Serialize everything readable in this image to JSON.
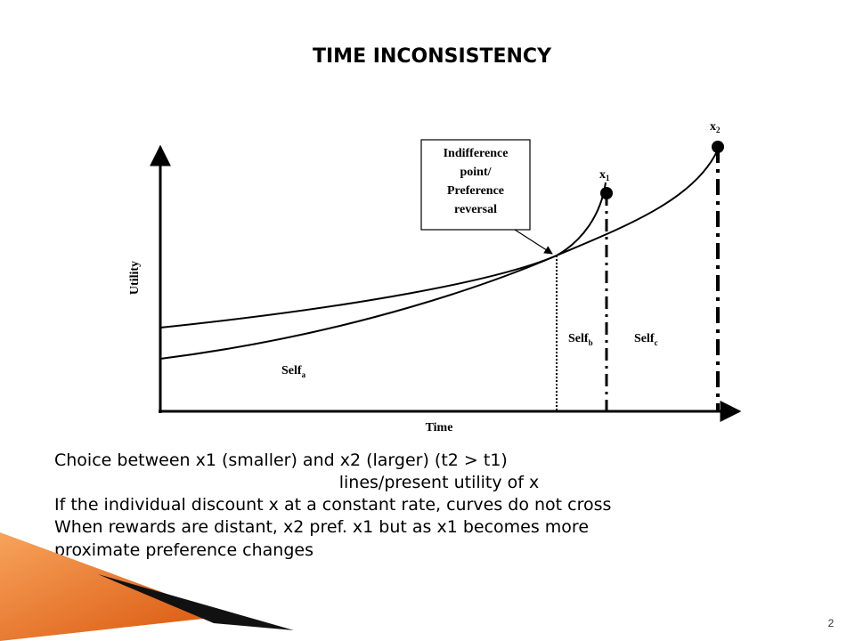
{
  "header": {
    "title": "TIME INCONSISTENCY"
  },
  "diagram": {
    "y_axis_label": "Utility",
    "x_axis_label": "Time",
    "box_lines": [
      "Indifference",
      "point/",
      "Preference",
      "reversal"
    ],
    "x1": {
      "text": "x",
      "sub": "1"
    },
    "x2": {
      "text": "x",
      "sub": "2"
    },
    "self_a": {
      "text": "Self",
      "sub": "a"
    },
    "self_b": {
      "text": "Self",
      "sub": "b"
    },
    "self_c": {
      "text": "Self",
      "sub": "c"
    }
  },
  "body": {
    "lines": [
      "Choice between x1 (smaller) and x2 (larger)  (t2 > t1)",
      "lines/present utility of x",
      "If the individual discount x at a constant rate, curves do not cross",
      "When rewards are distant, x2 pref. x1 but as x1 becomes more",
      "proximate preference changes"
    ]
  },
  "footer": {
    "page_number": "2"
  }
}
